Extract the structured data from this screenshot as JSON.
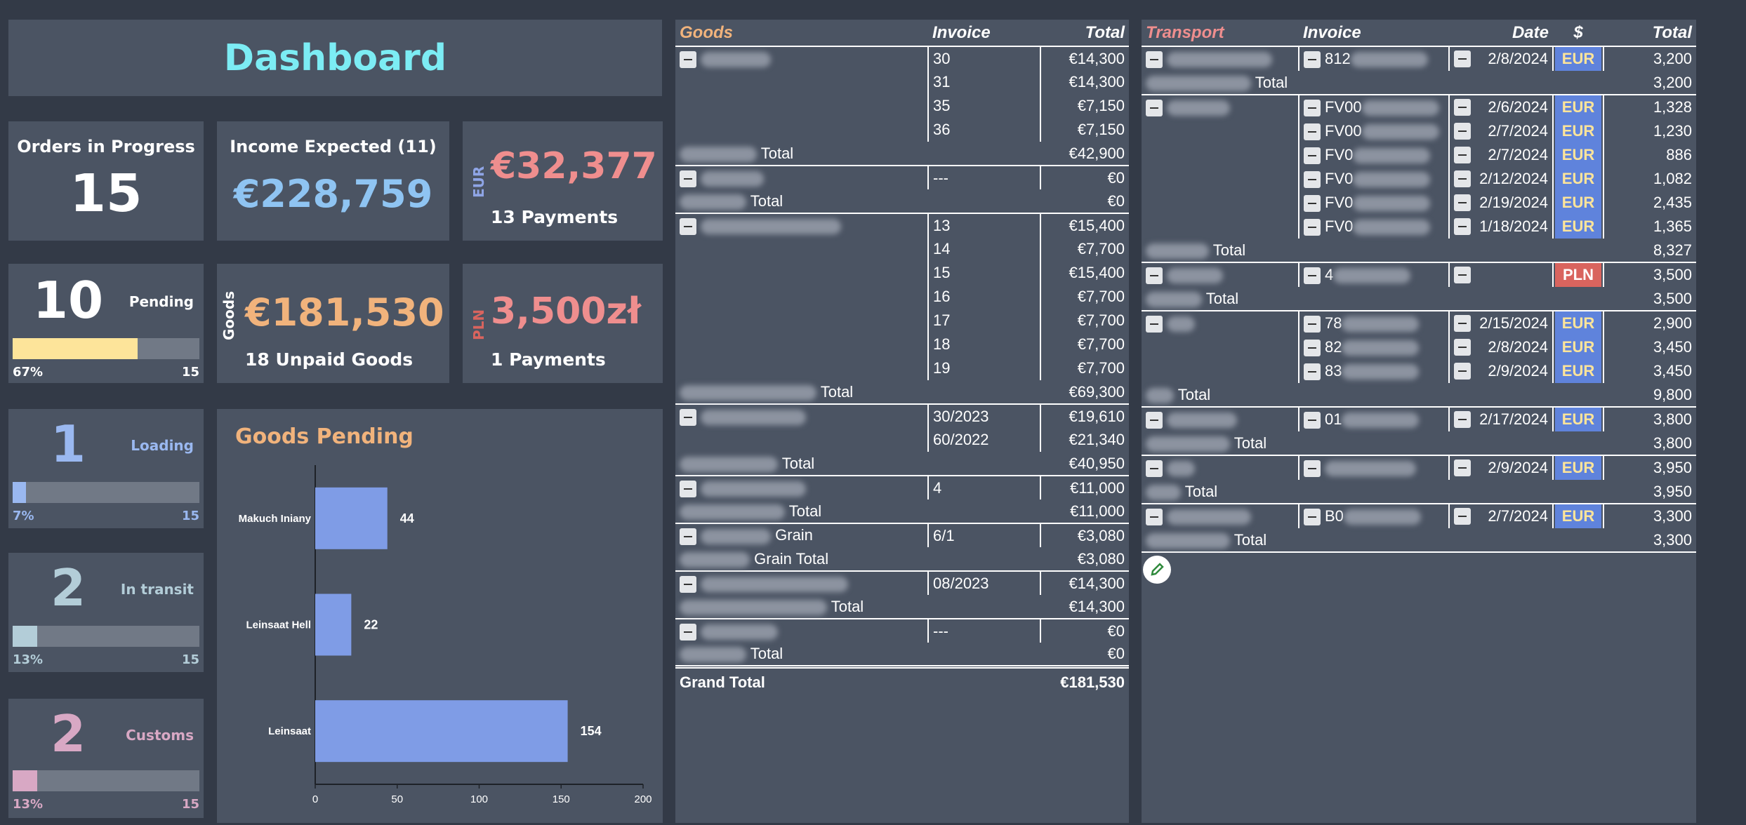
{
  "dashboard": {
    "title": "Dashboard"
  },
  "kpis": {
    "orders": {
      "label": "Orders in Progress",
      "value": "15"
    },
    "income": {
      "label": "Income Expected (11)",
      "value": "€228,759"
    },
    "eur": {
      "side": "EUR",
      "value": "€32,377",
      "sub": "13 Payments"
    },
    "goods": {
      "side": "Goods",
      "value": "€181,530",
      "sub": "18 Unpaid Goods"
    },
    "pln": {
      "side": "PLN",
      "value": "3,500zł",
      "sub": "1 Payments"
    }
  },
  "statuses": [
    {
      "count": "10",
      "label": "Pending",
      "pct": "67%",
      "total": "15",
      "fraction": 0.67,
      "color": "#fde49a"
    },
    {
      "count": "1",
      "label": "Loading",
      "pct": "7%",
      "total": "15",
      "fraction": 0.07,
      "color": "#9ab8f0"
    },
    {
      "count": "2",
      "label": "In transit",
      "pct": "13%",
      "total": "15",
      "fraction": 0.13,
      "color": "#b3cdd8"
    },
    {
      "count": "2",
      "label": "Customs",
      "pct": "13%",
      "total": "15",
      "fraction": 0.13,
      "color": "#d8a8c4"
    }
  ],
  "chart_data": {
    "type": "bar",
    "orientation": "horizontal",
    "title": "Goods Pending",
    "categories": [
      "Makuch Iniany",
      "Leinsaat Hell",
      "Leinsaat"
    ],
    "values": [
      44,
      22,
      154
    ],
    "xlim": [
      0,
      200
    ],
    "xticks": [
      0,
      50,
      100,
      150,
      200
    ],
    "bar_color": "#7f9ce6",
    "grid": false
  },
  "goods_table": {
    "headers": {
      "goods": "Goods",
      "invoice": "Invoice",
      "total": "Total"
    },
    "rows": [
      {
        "kind": "item",
        "name": "",
        "invoice": "30",
        "total": "€14,300",
        "blur": 100
      },
      {
        "kind": "sub",
        "invoice": "31",
        "total": "€14,300"
      },
      {
        "kind": "sub",
        "invoice": "35",
        "total": "€7,150"
      },
      {
        "kind": "sub",
        "invoice": "36",
        "total": "€7,150"
      },
      {
        "kind": "total",
        "label": "Total",
        "total": "€42,900",
        "blur": 110
      },
      {
        "kind": "item",
        "name": "",
        "invoice": "---",
        "total": "€0",
        "blur": 90
      },
      {
        "kind": "total",
        "label": "Total",
        "total": "€0",
        "blur": 95
      },
      {
        "kind": "item",
        "name": "",
        "invoice": "13",
        "total": "€15,400",
        "blur": 200
      },
      {
        "kind": "sub",
        "invoice": "14",
        "total": "€7,700"
      },
      {
        "kind": "sub",
        "invoice": "15",
        "total": "€15,400"
      },
      {
        "kind": "sub",
        "invoice": "16",
        "total": "€7,700"
      },
      {
        "kind": "sub",
        "invoice": "17",
        "total": "€7,700"
      },
      {
        "kind": "sub",
        "invoice": "18",
        "total": "€7,700"
      },
      {
        "kind": "sub",
        "invoice": "19",
        "total": "€7,700"
      },
      {
        "kind": "total",
        "label": "Total",
        "total": "€69,300",
        "blur": 195
      },
      {
        "kind": "item",
        "name": "",
        "invoice": "30/2023",
        "total": "€19,610",
        "blur": 150
      },
      {
        "kind": "sub",
        "invoice": "60/2022",
        "total": "€21,340"
      },
      {
        "kind": "total",
        "label": "Total",
        "total": "€40,950",
        "blur": 140
      },
      {
        "kind": "item",
        "name": "",
        "invoice": "4",
        "total": "€11,000",
        "blur": 150
      },
      {
        "kind": "total",
        "label": "Total",
        "total": "€11,000",
        "blur": 150
      },
      {
        "kind": "item",
        "name": "Grain",
        "invoice": "6/1",
        "total": "€3,080",
        "blur": 100
      },
      {
        "kind": "total",
        "label": "Grain Total",
        "total": "€3,080",
        "blur": 100
      },
      {
        "kind": "item",
        "name": "",
        "invoice": "08/2023",
        "total": "€14,300",
        "blur": 210
      },
      {
        "kind": "total",
        "label": "Total",
        "total": "€14,300",
        "blur": 210
      },
      {
        "kind": "item",
        "name": "",
        "invoice": "---",
        "total": "€0",
        "blur": 110
      },
      {
        "kind": "total",
        "label": "Total",
        "total": "€0",
        "blur": 95
      }
    ],
    "grand": {
      "label": "Grand Total",
      "total": "€181,530"
    }
  },
  "transport_table": {
    "headers": {
      "transport": "Transport",
      "invoice": "Invoice",
      "date": "Date",
      "cur": "$",
      "total": "Total"
    },
    "rows": [
      {
        "kind": "item",
        "blur": 150,
        "inv": "812",
        "date": "2/8/2024",
        "cur": "EUR",
        "total": "3,200"
      },
      {
        "kind": "total",
        "label": "Total",
        "total": "3,200",
        "blur": 150
      },
      {
        "kind": "item",
        "blur": 90,
        "inv": "FV00",
        "date": "2/6/2024",
        "cur": "EUR",
        "total": "1,328"
      },
      {
        "kind": "sub",
        "inv": "FV00",
        "date": "2/7/2024",
        "cur": "EUR",
        "total": "1,230"
      },
      {
        "kind": "sub",
        "inv": "FV0",
        "date": "2/7/2024",
        "cur": "EUR",
        "total": "886"
      },
      {
        "kind": "sub",
        "inv": "FV0",
        "date": "2/12/2024",
        "cur": "EUR",
        "total": "1,082"
      },
      {
        "kind": "sub",
        "inv": "FV0",
        "date": "2/19/2024",
        "cur": "EUR",
        "total": "2,435"
      },
      {
        "kind": "sub",
        "inv": "FV0",
        "date": "1/18/2024",
        "cur": "EUR",
        "total": "1,365"
      },
      {
        "kind": "total",
        "label": "Total",
        "total": "8,327",
        "blur": 90
      },
      {
        "kind": "item",
        "blur": 80,
        "inv": "4",
        "date": "",
        "cur": "PLN",
        "total": "3,500"
      },
      {
        "kind": "total",
        "label": "Total",
        "total": "3,500",
        "blur": 80
      },
      {
        "kind": "item",
        "blur": 40,
        "inv": "78",
        "date": "2/15/2024",
        "cur": "EUR",
        "total": "2,900"
      },
      {
        "kind": "sub",
        "inv": "82",
        "date": "2/8/2024",
        "cur": "EUR",
        "total": "3,450"
      },
      {
        "kind": "sub",
        "inv": "83",
        "date": "2/9/2024",
        "cur": "EUR",
        "total": "3,450"
      },
      {
        "kind": "total",
        "label": "Total",
        "total": "9,800",
        "blur": 40
      },
      {
        "kind": "item",
        "blur": 100,
        "inv": "01",
        "date": "2/17/2024",
        "cur": "EUR",
        "total": "3,800"
      },
      {
        "kind": "total",
        "label": "Total",
        "total": "3,800",
        "blur": 120
      },
      {
        "kind": "item",
        "blur": 40,
        "inv": "",
        "date": "2/9/2024",
        "cur": "EUR",
        "total": "3,950"
      },
      {
        "kind": "total",
        "label": "Total",
        "total": "3,950",
        "blur": 50
      },
      {
        "kind": "item",
        "blur": 120,
        "inv": "B0",
        "date": "2/7/2024",
        "cur": "EUR",
        "total": "3,300"
      },
      {
        "kind": "total",
        "label": "Total",
        "total": "3,300",
        "blur": 120
      }
    ]
  },
  "colors": {
    "eur": "#5f83dc",
    "pln": "#d9645e",
    "orange": "#f1b37c",
    "salmon": "#ef8e8e",
    "blue": "#8fc4f2"
  }
}
